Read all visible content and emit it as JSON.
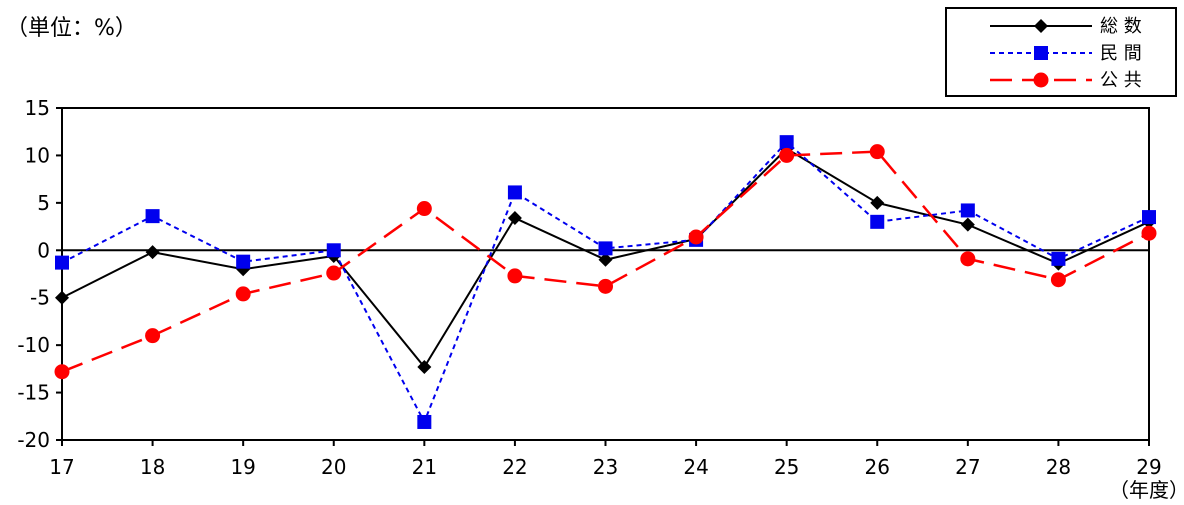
{
  "chart_data": {
    "type": "line",
    "unit_label": "（単位：%）",
    "xlabel": "（年度）",
    "categories": [
      "17",
      "18",
      "19",
      "20",
      "21",
      "22",
      "23",
      "24",
      "25",
      "26",
      "27",
      "28",
      "29"
    ],
    "ylim": [
      -20,
      15
    ],
    "yticks": [
      15,
      10,
      5,
      0,
      -5,
      -10,
      -15,
      -20
    ],
    "grid": false,
    "legend_position": "top-right",
    "series": [
      {
        "name": "総 数",
        "color": "#000000",
        "dash": "solid",
        "marker": "diamond",
        "values": [
          -5.0,
          -0.2,
          -2.0,
          -0.6,
          -12.3,
          3.4,
          -1.0,
          1.2,
          10.7,
          5.0,
          2.7,
          -1.4,
          3.0
        ]
      },
      {
        "name": "民 間",
        "color": "#0000ee",
        "dash": "dotted",
        "marker": "square",
        "values": [
          -1.3,
          3.6,
          -1.2,
          0.0,
          -18.1,
          6.1,
          0.2,
          1.1,
          11.4,
          3.0,
          4.2,
          -0.9,
          3.5
        ]
      },
      {
        "name": "公 共",
        "color": "#ff0000",
        "dash": "dashed",
        "marker": "circle",
        "values": [
          -12.8,
          -9.0,
          -4.6,
          -2.4,
          4.4,
          -2.7,
          -3.8,
          1.4,
          10.0,
          10.4,
          -0.9,
          -3.1,
          1.8
        ]
      }
    ]
  }
}
